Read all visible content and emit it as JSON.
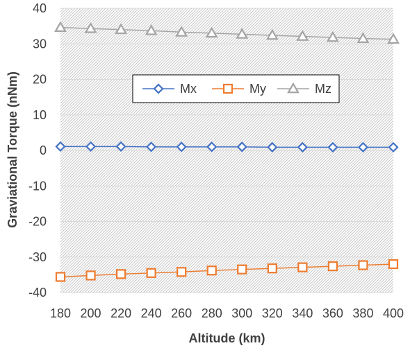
{
  "chart_data": {
    "type": "line",
    "title": "",
    "xlabel": "Altitude (km)",
    "ylabel": "Graviational Torque (nNm)",
    "x": [
      180,
      200,
      220,
      240,
      260,
      280,
      300,
      320,
      340,
      360,
      380,
      400
    ],
    "xlim": [
      180,
      400
    ],
    "ylim": [
      -40,
      40
    ],
    "x_ticks": [
      "180",
      "200",
      "220",
      "240",
      "260",
      "280",
      "300",
      "320",
      "340",
      "360",
      "380",
      "400"
    ],
    "y_ticks": [
      "40",
      "30",
      "20",
      "10",
      "0",
      "-10",
      "-20",
      "-30",
      "-40"
    ],
    "grid": "horizontal",
    "plot_background": "hatched light gray",
    "legend": {
      "placement": "inside-top-center"
    },
    "series": [
      {
        "name": "Mx",
        "marker": "diamond",
        "color": "#4472C4",
        "values": [
          1.1,
          1.1,
          1.1,
          1.0,
          1.0,
          1.0,
          1.0,
          0.9,
          0.9,
          0.9,
          0.9,
          0.9
        ]
      },
      {
        "name": "My",
        "marker": "square",
        "color": "#ED7D31",
        "values": [
          -35.6,
          -35.2,
          -34.8,
          -34.5,
          -34.2,
          -33.8,
          -33.5,
          -33.2,
          -32.9,
          -32.6,
          -32.3,
          -32.0
        ]
      },
      {
        "name": "Mz",
        "marker": "triangle",
        "color": "#A5A5A5",
        "values": [
          34.6,
          34.3,
          34.0,
          33.7,
          33.3,
          33.0,
          32.7,
          32.4,
          32.1,
          31.8,
          31.5,
          31.3
        ]
      }
    ]
  }
}
